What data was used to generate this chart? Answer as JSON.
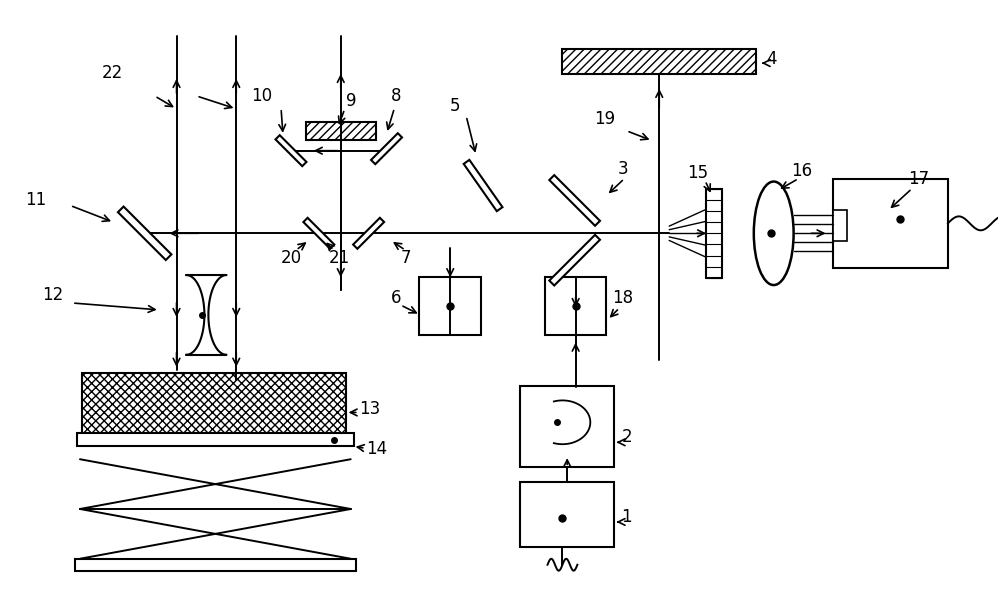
{
  "figsize": [
    10,
    5.9
  ],
  "dpi": 100,
  "label_fontsize": 12
}
